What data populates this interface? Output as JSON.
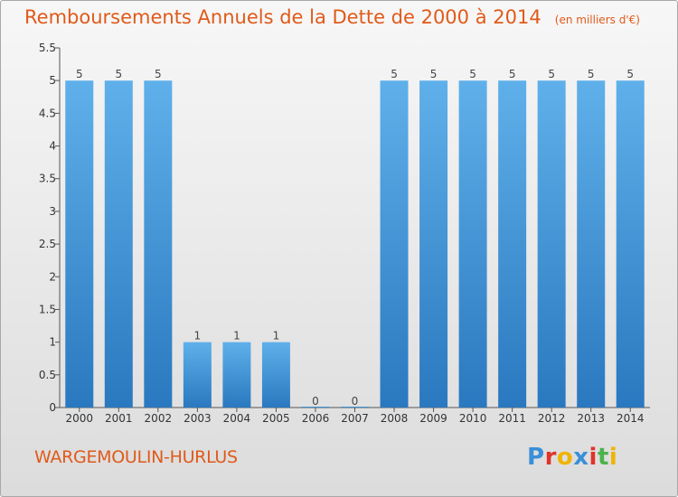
{
  "header": {
    "title": "Remboursements Annuels de la Dette de 2000 à 2014",
    "unit": "(en milliers d'€)"
  },
  "footer": {
    "commune": "WARGEMOULIN-HURLUS",
    "logo_text": "Proxiti",
    "logo_colors": [
      "#3a8fd8",
      "#e0342a",
      "#f0b400",
      "#3a8fd8",
      "#e0342a",
      "#4bb34b",
      "#f0b400"
    ]
  },
  "colors": {
    "bar_light": "#5fb0ea",
    "bar_dark": "#2a78bf",
    "accent": "#e05a1a"
  },
  "chart_data": {
    "type": "bar",
    "title": "Remboursements Annuels de la Dette de 2000 à 2014",
    "categories": [
      "2000",
      "2001",
      "2002",
      "2003",
      "2004",
      "2005",
      "2006",
      "2007",
      "2008",
      "2009",
      "2010",
      "2011",
      "2012",
      "2013",
      "2014"
    ],
    "values": [
      5,
      5,
      5,
      1,
      1,
      1,
      0,
      0,
      5,
      5,
      5,
      5,
      5,
      5,
      5
    ],
    "ylim": [
      0,
      5.5
    ],
    "yticks": [
      "0",
      "0.5",
      "1",
      "1.5",
      "2",
      "2.5",
      "3",
      "3.5",
      "4",
      "4.5",
      "5",
      "5.5"
    ],
    "xlabel": "",
    "ylabel": "",
    "grid": false
  }
}
